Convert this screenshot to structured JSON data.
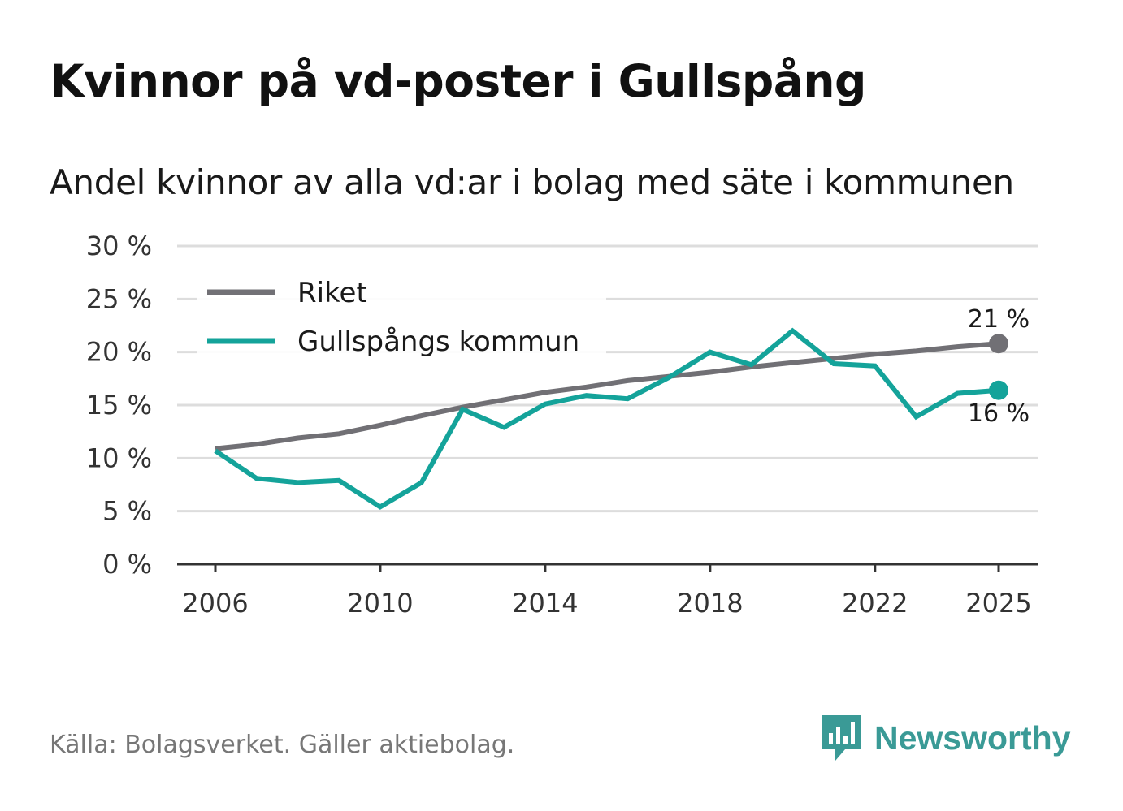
{
  "title": "Kvinnor på vd-poster i Gullspång",
  "subtitle": "Andel kvinnor av alla vd:ar i bolag med säte i kommunen",
  "source": "Källa: Bolagsverket. Gäller aktiebolag.",
  "brand": {
    "name": "Newsworthy",
    "icon": "newsworthy-logo-icon",
    "color": "#3a9a96"
  },
  "colors": {
    "riket": "#717075",
    "kommun": "#14a39a",
    "grid": "#dddddd",
    "axis": "#333333"
  },
  "chart_data": {
    "type": "line",
    "title": "Kvinnor på vd-poster i Gullspång",
    "subtitle": "Andel kvinnor av alla vd:ar i bolag med säte i kommunen",
    "xlabel": "",
    "ylabel": "",
    "ylim": [
      0,
      30
    ],
    "xlim": [
      2006,
      2025
    ],
    "y_ticks": [
      0,
      5,
      10,
      15,
      20,
      25,
      30
    ],
    "y_tick_labels": [
      "0 %",
      "5 %",
      "10 %",
      "15 %",
      "20 %",
      "25 %",
      "30 %"
    ],
    "x_ticks": [
      2006,
      2010,
      2014,
      2018,
      2022,
      2025
    ],
    "x_tick_labels": [
      "2006",
      "2010",
      "2014",
      "2018",
      "2022",
      "2025"
    ],
    "grid": true,
    "legend": "top-left",
    "x": [
      2006,
      2007,
      2008,
      2009,
      2010,
      2011,
      2012,
      2013,
      2014,
      2015,
      2016,
      2017,
      2018,
      2019,
      2020,
      2021,
      2022,
      2023,
      2024,
      2025
    ],
    "series": [
      {
        "name": "Riket",
        "color": "#717075",
        "values": [
          10.9,
          11.3,
          11.9,
          12.3,
          13.1,
          14.0,
          14.8,
          15.5,
          16.2,
          16.7,
          17.3,
          17.7,
          18.1,
          18.6,
          19.0,
          19.4,
          19.8,
          20.1,
          20.5,
          20.8
        ],
        "end_label": "21 %"
      },
      {
        "name": "Gullspångs kommun",
        "color": "#14a39a",
        "values": [
          10.7,
          8.1,
          7.7,
          7.9,
          5.4,
          7.7,
          14.6,
          12.9,
          15.1,
          15.9,
          15.6,
          17.6,
          20.0,
          18.8,
          22.0,
          18.9,
          18.7,
          13.9,
          16.1,
          16.4
        ],
        "end_label": "16 %"
      }
    ]
  }
}
